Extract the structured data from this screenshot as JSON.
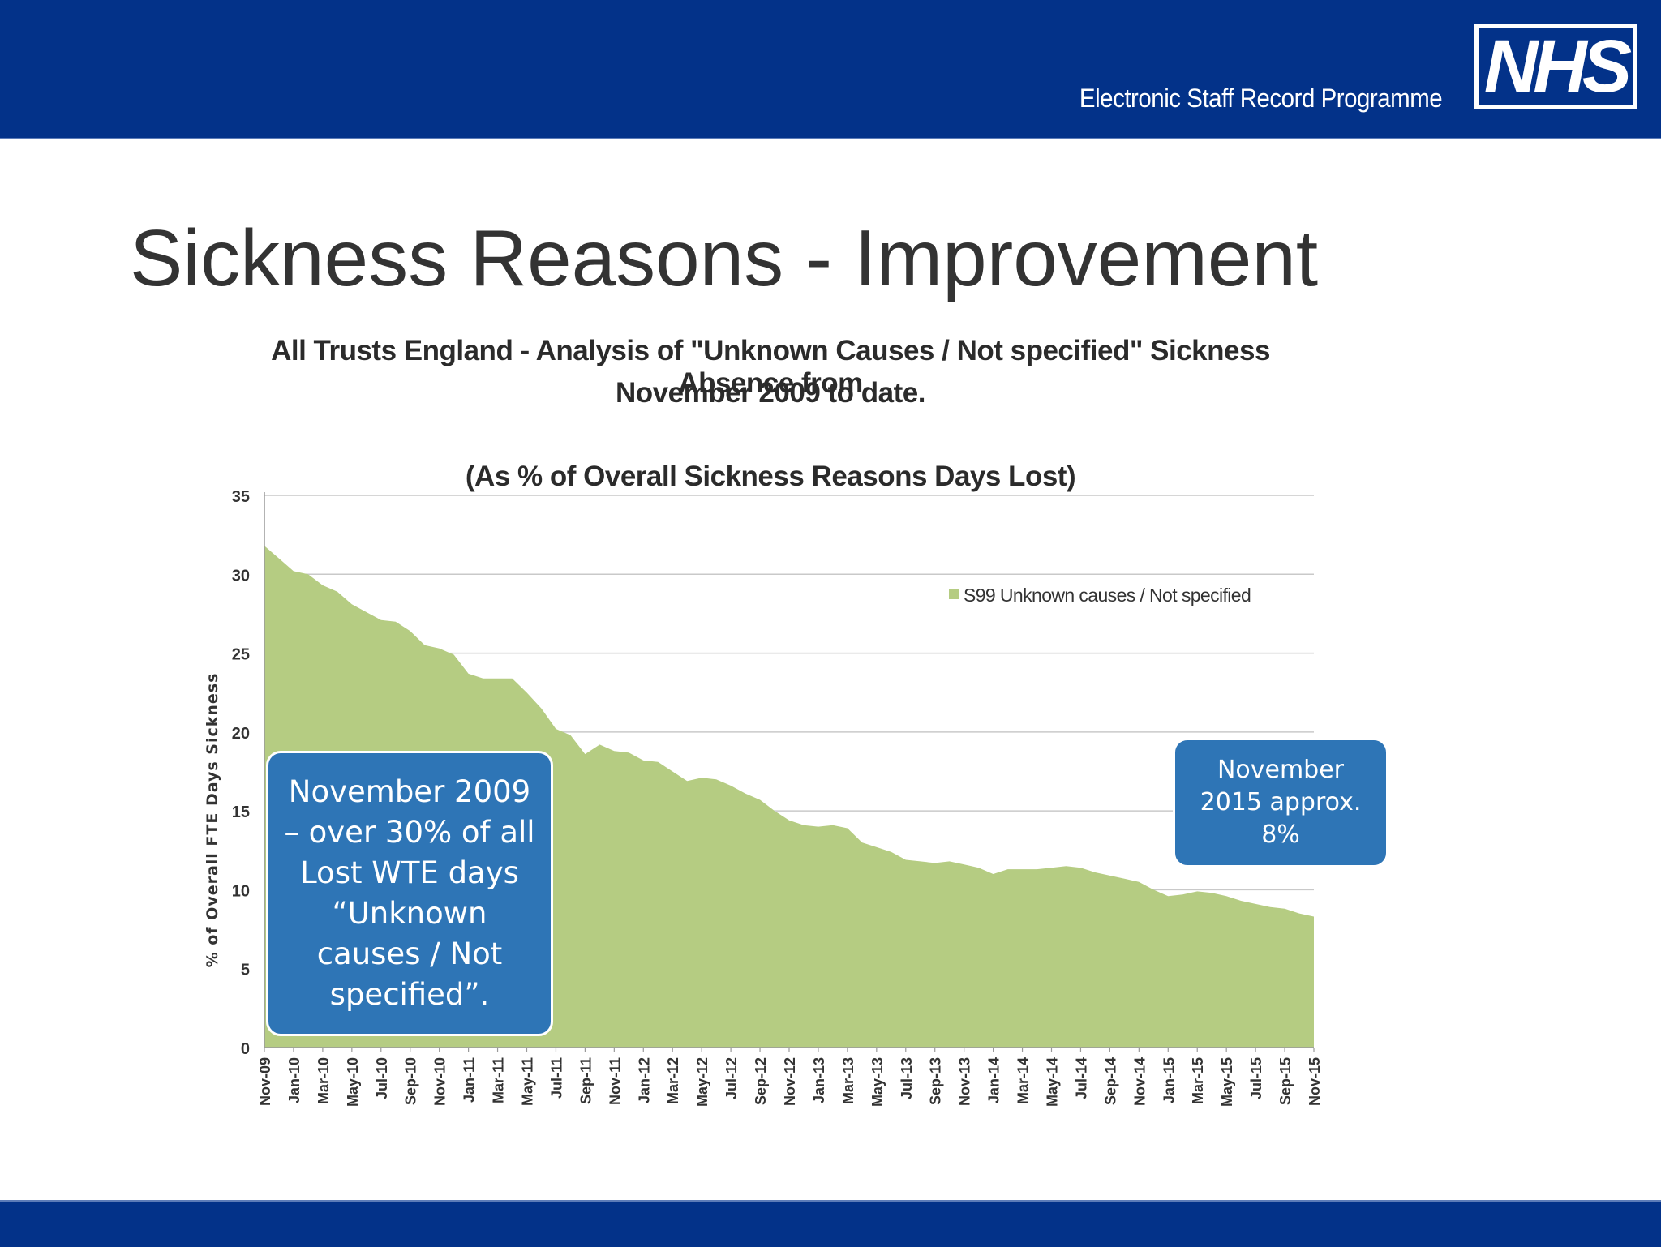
{
  "header": {
    "subtitle": "Electronic Staff Record Programme",
    "logo_text": "NHS"
  },
  "slide": {
    "title": "Sickness Reasons - Improvement"
  },
  "colors": {
    "banner": "#033289",
    "area_fill": "#b5cc82",
    "callout": "#2e75b6",
    "gridline": "#c9c9c9"
  },
  "callouts": {
    "left": "November 2009 – over 30% of all Lost WTE days  “Unknown causes / Not specified”.",
    "right": "November 2015  approx. 8%"
  },
  "chart_data": {
    "type": "area",
    "title_line1": "All Trusts England - Analysis of \"Unknown Causes / Not specified\" Sickness Absence from",
    "title_line2": "November 2009 to date.",
    "subtitle": "(As % of Overall Sickness Reasons Days Lost)",
    "ylabel": "% of Overall FTE Days Sickness",
    "xlabel": "",
    "ylim": [
      0,
      35
    ],
    "yticks": [
      0,
      5,
      10,
      15,
      20,
      25,
      30,
      35
    ],
    "legend": "top-right",
    "x_tick_labels": [
      "Nov-09",
      "Jan-10",
      "Mar-10",
      "May-10",
      "Jul-10",
      "Sep-10",
      "Nov-10",
      "Jan-11",
      "Mar-11",
      "May-11",
      "Jul-11",
      "Sep-11",
      "Nov-11",
      "Jan-12",
      "Mar-12",
      "May-12",
      "Jul-12",
      "Sep-12",
      "Nov-12",
      "Jan-13",
      "Mar-13",
      "May-13",
      "Jul-13",
      "Sep-13",
      "Nov-13",
      "Jan-14",
      "Mar-14",
      "May-14",
      "Jul-14",
      "Sep-14",
      "Nov-14",
      "Jan-15",
      "Mar-15",
      "May-15",
      "Jul-15",
      "Sep-15",
      "Nov-15"
    ],
    "series": [
      {
        "name": "S99 Unknown causes / Not specified",
        "values": [
          31.8,
          31.0,
          30.2,
          30.0,
          29.3,
          28.9,
          28.1,
          27.6,
          27.1,
          27.0,
          26.4,
          25.5,
          25.3,
          24.9,
          23.7,
          23.4,
          23.4,
          23.4,
          22.5,
          21.5,
          20.2,
          19.8,
          18.6,
          19.2,
          18.8,
          18.7,
          18.2,
          18.1,
          17.5,
          16.9,
          17.1,
          17.0,
          16.6,
          16.1,
          15.7,
          15.0,
          14.4,
          14.1,
          14.0,
          14.1,
          13.9,
          13.0,
          12.7,
          12.4,
          11.9,
          11.8,
          11.7,
          11.8,
          11.6,
          11.4,
          11.0,
          11.3,
          11.3,
          11.3,
          11.4,
          11.5,
          11.4,
          11.1,
          10.9,
          10.7,
          10.5,
          10.0,
          9.6,
          9.7,
          9.9,
          9.8,
          9.6,
          9.3,
          9.1,
          8.9,
          8.8,
          8.5,
          8.3
        ]
      }
    ]
  }
}
